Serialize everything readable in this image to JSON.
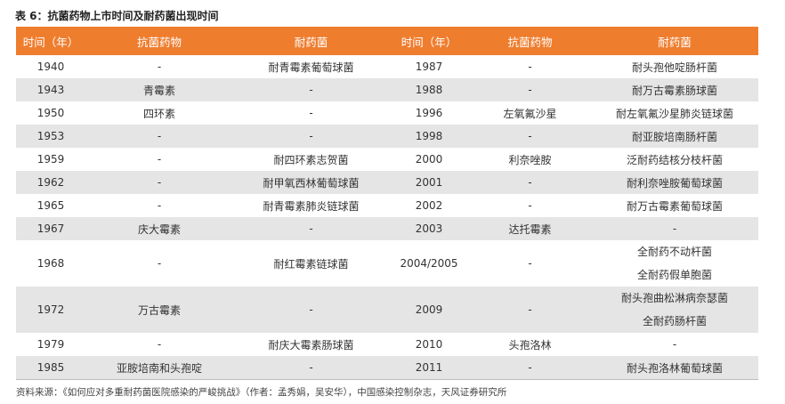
{
  "title": "表 6：抗菌药物上市时间及耐药菌出现时间",
  "headers": [
    "时间（年）",
    "抗菌药物",
    "耐药菌",
    "时间（年）",
    "抗菌药物",
    "耐药菌"
  ],
  "rows": [
    {
      "y1": "1940",
      "drug1": "-",
      "res1": [
        "耐青霉素葡萄球菌"
      ],
      "y2": "1987",
      "drug2": "-",
      "res2": [
        "耐头孢他啶肠杆菌"
      ]
    },
    {
      "y1": "1943",
      "drug1": "青霉素",
      "res1": [
        "-"
      ],
      "y2": "1988",
      "drug2": "-",
      "res2": [
        "耐万古霉素肠球菌"
      ]
    },
    {
      "y1": "1950",
      "drug1": "四环素",
      "res1": [
        "-"
      ],
      "y2": "1996",
      "drug2": "左氧氟沙星",
      "res2": [
        "耐左氧氟沙星肺炎链球菌"
      ]
    },
    {
      "y1": "1953",
      "drug1": "-",
      "res1": [
        "-"
      ],
      "y2": "1998",
      "drug2": "-",
      "res2": [
        "耐亚胺培南肠杆菌"
      ]
    },
    {
      "y1": "1959",
      "drug1": "-",
      "res1": [
        "耐四环素志贺菌"
      ],
      "y2": "2000",
      "drug2": "利奈唑胺",
      "res2": [
        "泛耐药结核分枝杆菌"
      ]
    },
    {
      "y1": "1962",
      "drug1": "-",
      "res1": [
        "耐甲氧西林葡萄球菌"
      ],
      "y2": "2001",
      "drug2": "-",
      "res2": [
        "耐利奈唑胺葡萄球菌"
      ]
    },
    {
      "y1": "1965",
      "drug1": "-",
      "res1": [
        "耐青霉素肺炎链球菌"
      ],
      "y2": "2002",
      "drug2": "-",
      "res2": [
        "耐万古霉素葡萄球菌"
      ]
    },
    {
      "y1": "1967",
      "drug1": "庆大霉素",
      "res1": [
        "-"
      ],
      "y2": "2003",
      "drug2": "达托霉素",
      "res2": [
        "-"
      ]
    },
    {
      "y1": "1968",
      "drug1": "-",
      "res1": [
        "耐红霉素链球菌"
      ],
      "y2": "2004/2005",
      "drug2": "-",
      "res2": [
        "全耐药不动杆菌",
        "全耐药假单胞菌"
      ]
    },
    {
      "y1": "1972",
      "drug1": "万古霉素",
      "res1": [
        "-"
      ],
      "y2": "2009",
      "drug2": "-",
      "res2": [
        "耐头孢曲松淋病奈瑟菌",
        "全耐药肠杆菌"
      ]
    },
    {
      "y1": "1979",
      "drug1": "-",
      "res1": [
        "耐庆大霉素肠球菌"
      ],
      "y2": "2010",
      "drug2": "头孢洛林",
      "res2": [
        "-"
      ]
    },
    {
      "y1": "1985",
      "drug1": "亚胺培南和头孢啶",
      "res1": [
        "-"
      ],
      "y2": "2011",
      "drug2": "-",
      "res2": [
        "耐头孢洛林葡萄球菌"
      ]
    }
  ],
  "source": "资料来源：《如何应对多重耐药菌医院感染的严峻挑战》（作者：孟秀娟，吴安华），中国感染控制杂志，天风证券研究所"
}
